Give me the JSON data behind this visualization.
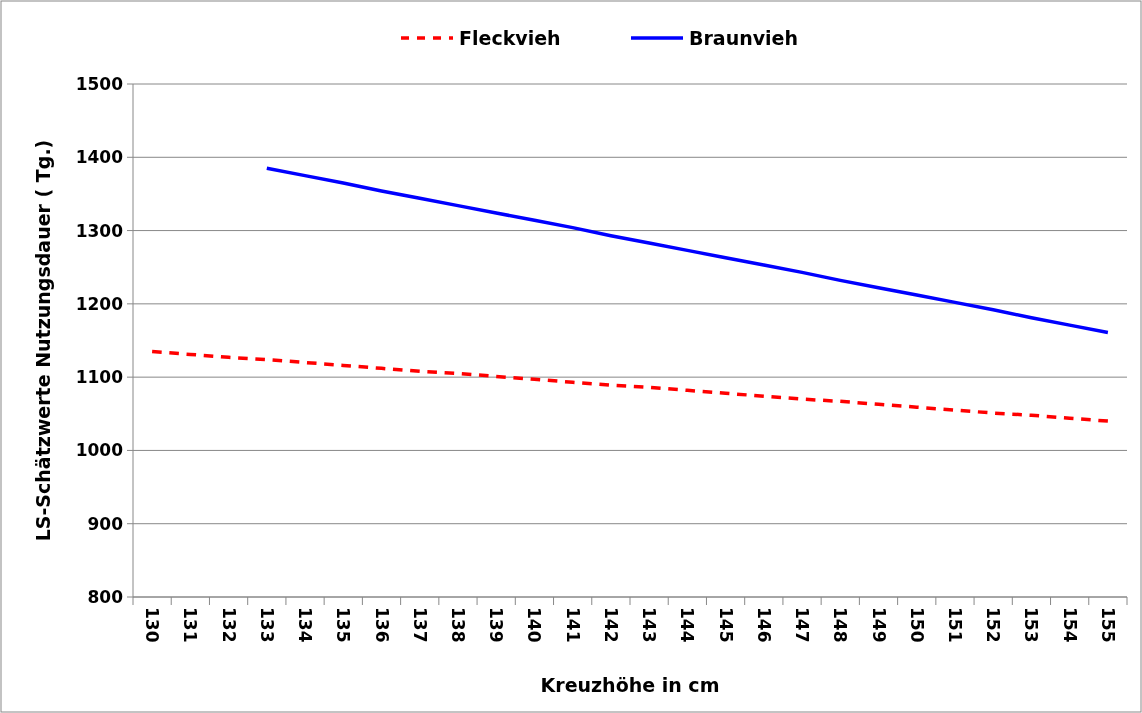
{
  "chart_data": {
    "type": "line",
    "xlabel": "Kreuzhöhe in cm",
    "ylabel": "LS-Schätzwerte Nutzungsdauer ( Tg.)",
    "categories": [
      "130",
      "131",
      "132",
      "133",
      "134",
      "135",
      "136",
      "137",
      "138",
      "139",
      "140",
      "141",
      "142",
      "143",
      "144",
      "145",
      "146",
      "147",
      "148",
      "149",
      "150",
      "151",
      "152",
      "153",
      "154",
      "155"
    ],
    "series": [
      {
        "name": "Fleckvieh",
        "color": "#ff0000",
        "line_style": "dashed",
        "values": [
          1135,
          1131,
          1127,
          1124,
          1120,
          1116,
          1112,
          1108,
          1105,
          1101,
          1097,
          1093,
          1089,
          1086,
          1082,
          1078,
          1074,
          1070,
          1067,
          1063,
          1059,
          1055,
          1051,
          1048,
          1044,
          1040
        ]
      },
      {
        "name": "Braunvieh",
        "color": "#0000ff",
        "line_style": "solid",
        "values": [
          null,
          null,
          null,
          1385,
          1375,
          1365,
          1354,
          1344,
          1334,
          1324,
          1314,
          1304,
          1293,
          1283,
          1273,
          1263,
          1253,
          1243,
          1232,
          1222,
          1212,
          1202,
          1192,
          1181,
          1171,
          1161
        ]
      }
    ],
    "ylim": [
      800,
      1500
    ],
    "yticks": [
      800,
      900,
      1000,
      1100,
      1200,
      1300,
      1400,
      1500
    ],
    "grid": "y",
    "legend": "top",
    "marker": "none"
  }
}
